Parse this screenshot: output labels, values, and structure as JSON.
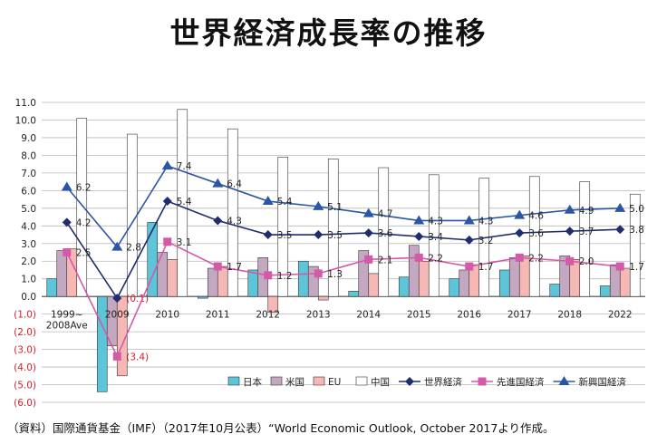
{
  "title": "世界経済成長率の推移",
  "source": "（資料）国際通貨基金（IMF）（2017年10月公表）“World Economic Outlook, October 2017より作成。",
  "colors": {
    "japan": "#5ec4d8",
    "usa": "#c4a8c2",
    "eu": "#f5b8b4",
    "china": "#ffffff",
    "world": "#1f2d6e",
    "advanced": "#d25aa8",
    "emerging": "#2b56a6",
    "negative_tick": "#d2202a"
  },
  "chart_data": {
    "type": "bar",
    "categories": [
      "1999~",
      "2009",
      "2010",
      "2011",
      "2012",
      "2013",
      "2014",
      "2015",
      "2016",
      "2017",
      "2018",
      "2022"
    ],
    "category_sublabel": "2008Ave",
    "ylim": [
      -6,
      11
    ],
    "yticks": [
      "11.0",
      "10.0",
      "9.0",
      "8.0",
      "7.0",
      "6.0",
      "5.0",
      "4.0",
      "3.0",
      "2.0",
      "1.0",
      "0.0",
      "(1.0)",
      "(2.0)",
      "(3.0)",
      "(4.0)",
      "(5.0)",
      "(6.0)"
    ],
    "ytick_values": [
      11,
      10,
      9,
      8,
      7,
      6,
      5,
      4,
      3,
      2,
      1,
      0,
      -1,
      -2,
      -3,
      -4,
      -5,
      -6
    ],
    "grid": true,
    "legend_position": "bottom-right",
    "bar_series": [
      {
        "name": "日本",
        "color_key": "japan",
        "values": [
          1.0,
          -5.4,
          4.2,
          -0.1,
          1.5,
          2.0,
          0.3,
          1.1,
          1.0,
          1.5,
          0.7,
          0.6
        ]
      },
      {
        "name": "米国",
        "color_key": "usa",
        "values": [
          2.6,
          -2.8,
          2.5,
          1.6,
          2.2,
          1.7,
          2.6,
          2.9,
          1.5,
          2.2,
          2.3,
          1.8
        ]
      },
      {
        "name": "EU",
        "color_key": "eu",
        "values": [
          2.7,
          -4.5,
          2.1,
          1.7,
          -0.9,
          -0.2,
          1.3,
          2.0,
          1.8,
          2.3,
          2.1,
          1.6
        ]
      },
      {
        "name": "中国",
        "color_key": "china",
        "values": [
          10.1,
          9.2,
          10.6,
          9.5,
          7.9,
          7.8,
          7.3,
          6.9,
          6.7,
          6.8,
          6.5,
          5.8
        ]
      }
    ],
    "line_series": [
      {
        "name": "世界経済",
        "color_key": "world",
        "marker": "diamond",
        "values": [
          4.2,
          -0.1,
          5.4,
          4.3,
          3.5,
          3.5,
          3.6,
          3.4,
          3.2,
          3.6,
          3.7,
          3.8
        ],
        "labels": [
          "4.2",
          "(0.1)",
          "5.4",
          "4.3",
          "3.5",
          "3.5",
          "3.6",
          "3.4",
          "3.2",
          "3.6",
          "3.7",
          "3.8"
        ]
      },
      {
        "name": "先進国経済",
        "color_key": "advanced",
        "marker": "square",
        "values": [
          2.5,
          -3.4,
          3.1,
          1.7,
          1.2,
          1.3,
          2.1,
          2.2,
          1.7,
          2.2,
          2.0,
          1.7
        ],
        "labels": [
          "2.5",
          "(3.4)",
          "3.1",
          "1.7",
          "1.2",
          "1.3",
          "2.1",
          "2.2",
          "1.7",
          "2.2",
          "2.0",
          "1.7"
        ]
      },
      {
        "name": "新興国経済",
        "color_key": "emerging",
        "marker": "triangle",
        "values": [
          6.2,
          2.8,
          7.4,
          6.4,
          5.4,
          5.1,
          4.7,
          4.3,
          4.3,
          4.6,
          4.9,
          5.0
        ],
        "labels": [
          "6.2",
          "2.8",
          "7.4",
          "6.4",
          "5.4",
          "5.1",
          "4.7",
          "4.3",
          "4.3",
          "4.6",
          "4.9",
          "5.0"
        ]
      }
    ],
    "legend": [
      "日本",
      "米国",
      "EU",
      "中国",
      "世界経済",
      "先進国経済",
      "新興国経済"
    ]
  }
}
